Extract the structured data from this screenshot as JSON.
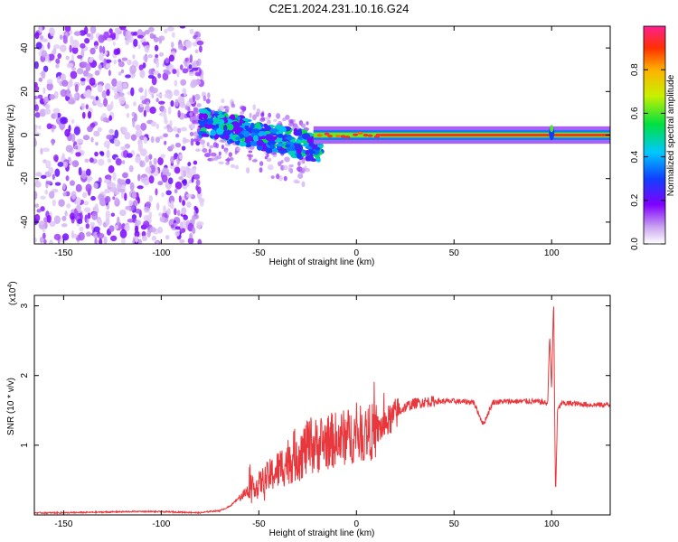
{
  "title": "C2E1.2024.231.10.16.G24",
  "chart_data": [
    {
      "type": "heatmap",
      "xlabel": "Height of straight line (km)",
      "ylabel": "Frequency (Hz)",
      "xlim": [
        -165,
        130
      ],
      "ylim": [
        -50,
        50
      ],
      "xticks": [
        -150,
        -100,
        -50,
        0,
        50,
        100
      ],
      "yticks": [
        -40,
        -20,
        0,
        20,
        40
      ],
      "colorbar": {
        "label": "Normalized spectral amplitude",
        "range": [
          0,
          1
        ],
        "ticks": [
          "0.0",
          "0.2",
          "0.4",
          "0.6",
          "0.8"
        ],
        "colormap": "rainbow (white-violet-blue-cyan-green-yellow-red)"
      },
      "features": [
        {
          "name": "noise region",
          "x_range": [
            -165,
            -80
          ],
          "freq_range": [
            -50,
            50
          ],
          "amplitude": "low (0.0-0.2)"
        },
        {
          "name": "emerging signal",
          "x_range": [
            -80,
            -20
          ],
          "freq_center": [
            6,
            -10
          ],
          "amplitude": "0.3-0.6"
        },
        {
          "name": "carrier line",
          "x_range": [
            -20,
            130
          ],
          "freq": 0,
          "amplitude": "~1.0"
        },
        {
          "name": "disturbance",
          "x": 100,
          "freq_range": [
            -5,
            8
          ]
        }
      ],
      "grid": false
    },
    {
      "type": "line",
      "xlabel": "Height of straight line (km)",
      "ylabel": "SNR (10 * v/v)",
      "ymultiplier_label": "(x10",
      "ymultiplier_exp": "4",
      "xlim": [
        -165,
        130
      ],
      "ylim": [
        0,
        3.15
      ],
      "xticks": [
        -150,
        -100,
        -50,
        0,
        50,
        100
      ],
      "yticks": [
        1,
        2,
        3
      ],
      "color": "#e8383d",
      "series": [
        {
          "x": [
            -165,
            -150,
            -130,
            -110,
            -90,
            -80,
            -75,
            -70,
            -65,
            -60,
            -55,
            -50,
            -45,
            -40,
            -35,
            -30,
            -25,
            -20,
            -15,
            -10,
            -5,
            0,
            5,
            10,
            15,
            20,
            25,
            30,
            35,
            40,
            50,
            60,
            65,
            70,
            80,
            90,
            95,
            98,
            99,
            100,
            101,
            102,
            103,
            105,
            110,
            120,
            130
          ],
          "values": [
            0.03,
            0.03,
            0.04,
            0.05,
            0.04,
            0.03,
            0.05,
            0.06,
            0.12,
            0.25,
            0.35,
            0.45,
            0.55,
            0.65,
            0.78,
            0.88,
            0.95,
            1.0,
            1.05,
            1.08,
            1.12,
            1.15,
            1.18,
            1.2,
            1.3,
            1.45,
            1.55,
            1.6,
            1.62,
            1.63,
            1.63,
            1.62,
            1.3,
            1.62,
            1.63,
            1.63,
            1.62,
            1.6,
            2.6,
            1.8,
            3.1,
            0.25,
            1.5,
            1.6,
            1.6,
            1.58,
            1.58
          ],
          "range_note": "spikes 0.3-1.75 in noisy region -55 to 20 km"
        }
      ],
      "grid": false
    }
  ]
}
